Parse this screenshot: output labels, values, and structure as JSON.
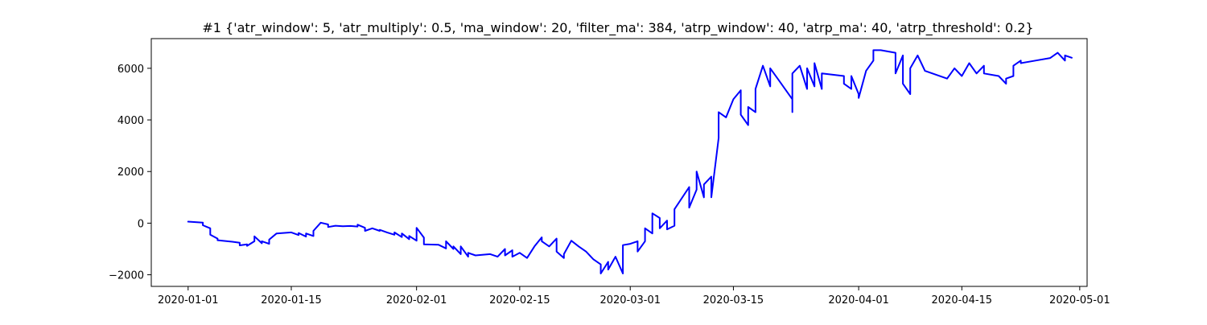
{
  "chart_data": {
    "type": "line",
    "title": "#1 {'atr_window': 5, 'atr_multiply': 0.5, 'ma_window': 20, 'filter_ma': 384, 'atrp_window': 40, 'atrp_ma': 40, 'atrp_threshold': 0.2}",
    "xlabel": "",
    "ylabel": "",
    "x_type": "date",
    "xlim": [
      "2019-12-27",
      "2020-05-02"
    ],
    "ylim": [
      -2450,
      7150
    ],
    "x_ticks": [
      "2020-01-01",
      "2020-01-15",
      "2020-02-01",
      "2020-02-15",
      "2020-03-01",
      "2020-03-15",
      "2020-04-01",
      "2020-04-15",
      "2020-05-01"
    ],
    "y_ticks": [
      -2000,
      0,
      2000,
      4000,
      6000
    ],
    "grid": false,
    "legend": "none",
    "colors": {
      "line": "#0000ff",
      "axes": "#000000",
      "background": "#ffffff"
    },
    "series": [
      {
        "name": "",
        "points": [
          [
            "2020-01-01",
            30
          ],
          [
            "2020-01-01",
            60
          ],
          [
            "2020-01-02",
            40
          ],
          [
            "2020-01-03",
            20
          ],
          [
            "2020-01-03",
            -80
          ],
          [
            "2020-01-04",
            -200
          ],
          [
            "2020-01-04",
            -450
          ],
          [
            "2020-01-05",
            -600
          ],
          [
            "2020-01-05",
            -660
          ],
          [
            "2020-01-07",
            -720
          ],
          [
            "2020-01-08",
            -760
          ],
          [
            "2020-01-08",
            -860
          ],
          [
            "2020-01-09",
            -820
          ],
          [
            "2020-01-09",
            -880
          ],
          [
            "2020-01-10",
            -700
          ],
          [
            "2020-01-10",
            -510
          ],
          [
            "2020-01-11",
            -780
          ],
          [
            "2020-01-11",
            -700
          ],
          [
            "2020-01-12",
            -800
          ],
          [
            "2020-01-12",
            -640
          ],
          [
            "2020-01-13",
            -400
          ],
          [
            "2020-01-15",
            -360
          ],
          [
            "2020-01-16",
            -460
          ],
          [
            "2020-01-16",
            -380
          ],
          [
            "2020-01-17",
            -520
          ],
          [
            "2020-01-17",
            -400
          ],
          [
            "2020-01-18",
            -500
          ],
          [
            "2020-01-18",
            -300
          ],
          [
            "2020-01-19",
            20
          ],
          [
            "2020-01-20",
            -50
          ],
          [
            "2020-01-20",
            -150
          ],
          [
            "2020-01-21",
            -100
          ],
          [
            "2020-01-22",
            -120
          ],
          [
            "2020-01-23",
            -110
          ],
          [
            "2020-01-24",
            -130
          ],
          [
            "2020-01-24",
            -60
          ],
          [
            "2020-01-25",
            -180
          ],
          [
            "2020-01-25",
            -300
          ],
          [
            "2020-01-26",
            -200
          ],
          [
            "2020-01-27",
            -300
          ],
          [
            "2020-01-27",
            -260
          ],
          [
            "2020-01-28",
            -360
          ],
          [
            "2020-01-29",
            -450
          ],
          [
            "2020-01-29",
            -360
          ],
          [
            "2020-01-30",
            -540
          ],
          [
            "2020-01-30",
            -400
          ],
          [
            "2020-01-31",
            -620
          ],
          [
            "2020-01-31",
            -500
          ],
          [
            "2020-02-01",
            -680
          ],
          [
            "2020-02-01",
            -180
          ],
          [
            "2020-02-02",
            -560
          ],
          [
            "2020-02-02",
            -820
          ],
          [
            "2020-02-04",
            -840
          ],
          [
            "2020-02-05",
            -980
          ],
          [
            "2020-02-05",
            -700
          ],
          [
            "2020-02-06",
            -1000
          ],
          [
            "2020-02-06",
            -900
          ],
          [
            "2020-02-07",
            -1200
          ],
          [
            "2020-02-07",
            -900
          ],
          [
            "2020-02-08",
            -1300
          ],
          [
            "2020-02-08",
            -1150
          ],
          [
            "2020-02-09",
            -1250
          ],
          [
            "2020-02-11",
            -1200
          ],
          [
            "2020-02-12",
            -1300
          ],
          [
            "2020-02-13",
            -1000
          ],
          [
            "2020-02-13",
            -1250
          ],
          [
            "2020-02-14",
            -1050
          ],
          [
            "2020-02-14",
            -1300
          ],
          [
            "2020-02-15",
            -1150
          ],
          [
            "2020-02-16",
            -1350
          ],
          [
            "2020-02-17",
            -900
          ],
          [
            "2020-02-18",
            -550
          ],
          [
            "2020-02-18",
            -700
          ],
          [
            "2020-02-19",
            -900
          ],
          [
            "2020-02-20",
            -600
          ],
          [
            "2020-02-20",
            -1100
          ],
          [
            "2020-02-21",
            -1350
          ],
          [
            "2020-02-21",
            -1200
          ],
          [
            "2020-02-22",
            -680
          ],
          [
            "2020-02-23",
            -900
          ],
          [
            "2020-02-24",
            -1100
          ],
          [
            "2020-02-25",
            -1400
          ],
          [
            "2020-02-26",
            -1600
          ],
          [
            "2020-02-26",
            -1950
          ],
          [
            "2020-02-27",
            -1500
          ],
          [
            "2020-02-27",
            -1800
          ],
          [
            "2020-02-28",
            -1300
          ],
          [
            "2020-02-29",
            -1950
          ],
          [
            "2020-02-29",
            -850
          ],
          [
            "2020-03-01",
            -800
          ],
          [
            "2020-03-02",
            -700
          ],
          [
            "2020-03-02",
            -1100
          ],
          [
            "2020-03-03",
            -700
          ],
          [
            "2020-03-03",
            -200
          ],
          [
            "2020-03-04",
            -400
          ],
          [
            "2020-03-04",
            380
          ],
          [
            "2020-03-05",
            200
          ],
          [
            "2020-03-05",
            -200
          ],
          [
            "2020-03-06",
            100
          ],
          [
            "2020-03-06",
            -240
          ],
          [
            "2020-03-07",
            -100
          ],
          [
            "2020-03-07",
            540
          ],
          [
            "2020-03-09",
            1400
          ],
          [
            "2020-03-09",
            600
          ],
          [
            "2020-03-10",
            1300
          ],
          [
            "2020-03-10",
            2000
          ],
          [
            "2020-03-11",
            1000
          ],
          [
            "2020-03-11",
            1500
          ],
          [
            "2020-03-12",
            1800
          ],
          [
            "2020-03-12",
            1000
          ],
          [
            "2020-03-13",
            3300
          ],
          [
            "2020-03-13",
            4300
          ],
          [
            "2020-03-14",
            4100
          ],
          [
            "2020-03-15",
            4800
          ],
          [
            "2020-03-16",
            5150
          ],
          [
            "2020-03-16",
            4200
          ],
          [
            "2020-03-17",
            3800
          ],
          [
            "2020-03-17",
            4500
          ],
          [
            "2020-03-18",
            4300
          ],
          [
            "2020-03-18",
            5200
          ],
          [
            "2020-03-19",
            6100
          ],
          [
            "2020-03-20",
            5300
          ],
          [
            "2020-03-20",
            6000
          ],
          [
            "2020-03-21",
            5600
          ],
          [
            "2020-03-23",
            4800
          ],
          [
            "2020-03-23",
            4300
          ],
          [
            "2020-03-23",
            5800
          ],
          [
            "2020-03-24",
            6100
          ],
          [
            "2020-03-25",
            5200
          ],
          [
            "2020-03-25",
            6000
          ],
          [
            "2020-03-26",
            5300
          ],
          [
            "2020-03-26",
            6200
          ],
          [
            "2020-03-27",
            5200
          ],
          [
            "2020-03-27",
            5800
          ],
          [
            "2020-03-30",
            5700
          ],
          [
            "2020-03-30",
            5400
          ],
          [
            "2020-03-31",
            5200
          ],
          [
            "2020-03-31",
            5700
          ],
          [
            "2020-04-01",
            5000
          ],
          [
            "2020-04-01",
            4850
          ],
          [
            "2020-04-02",
            5900
          ],
          [
            "2020-04-03",
            6300
          ],
          [
            "2020-04-03",
            6700
          ],
          [
            "2020-04-04",
            6700
          ],
          [
            "2020-04-06",
            6600
          ],
          [
            "2020-04-06",
            5800
          ],
          [
            "2020-04-07",
            6500
          ],
          [
            "2020-04-07",
            5400
          ],
          [
            "2020-04-08",
            5000
          ],
          [
            "2020-04-08",
            6000
          ],
          [
            "2020-04-09",
            6500
          ],
          [
            "2020-04-10",
            5900
          ],
          [
            "2020-04-13",
            5600
          ],
          [
            "2020-04-14",
            6000
          ],
          [
            "2020-04-15",
            5700
          ],
          [
            "2020-04-16",
            6200
          ],
          [
            "2020-04-17",
            5800
          ],
          [
            "2020-04-18",
            6100
          ],
          [
            "2020-04-18",
            5800
          ],
          [
            "2020-04-20",
            5700
          ],
          [
            "2020-04-21",
            5400
          ],
          [
            "2020-04-21",
            5600
          ],
          [
            "2020-04-22",
            5700
          ],
          [
            "2020-04-22",
            6100
          ],
          [
            "2020-04-23",
            6300
          ],
          [
            "2020-04-23",
            6200
          ],
          [
            "2020-04-25",
            6300
          ],
          [
            "2020-04-27",
            6400
          ],
          [
            "2020-04-28",
            6600
          ],
          [
            "2020-04-29",
            6300
          ],
          [
            "2020-04-29",
            6500
          ],
          [
            "2020-04-30",
            6400
          ]
        ]
      }
    ]
  }
}
